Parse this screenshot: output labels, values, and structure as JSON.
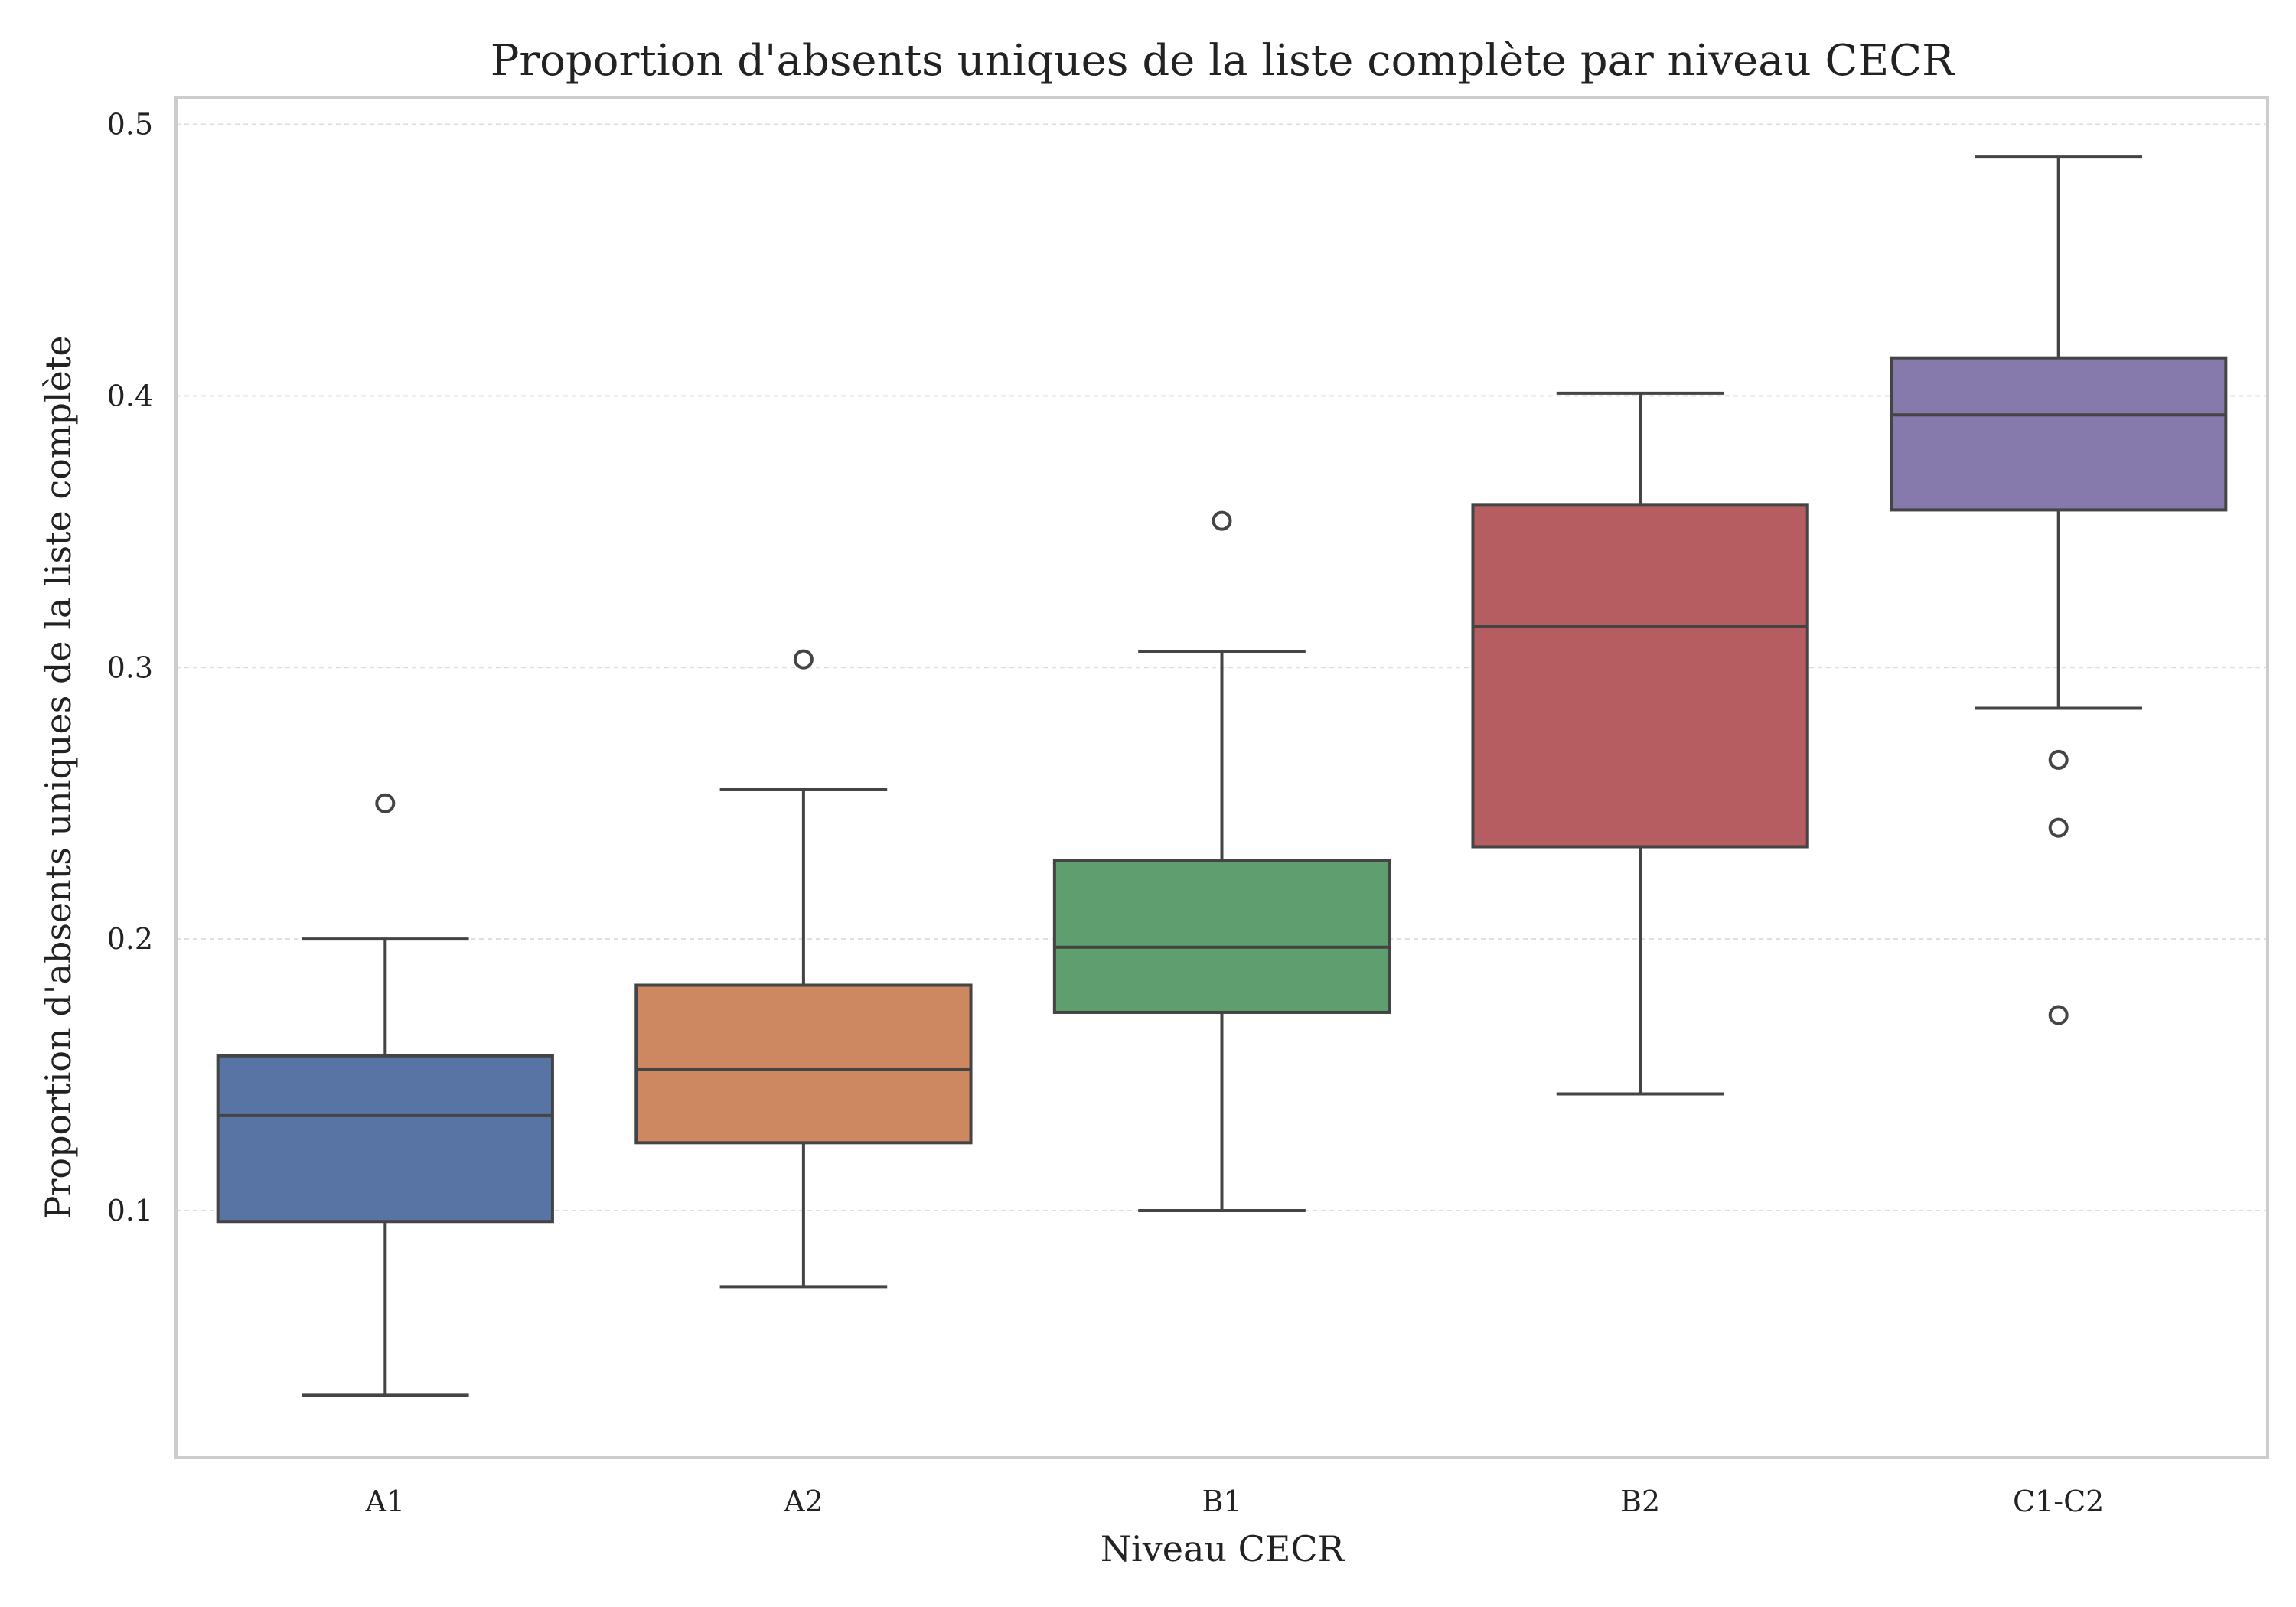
{
  "chart_data": {
    "type": "box",
    "title": "Proportion d'absents uniques de la liste complète par niveau CECR",
    "xlabel": "Niveau CECR",
    "ylabel": "Proportion d'absents uniques de la liste complète",
    "ylim": [
      0.009,
      0.51
    ],
    "yticks": [
      0.1,
      0.2,
      0.3,
      0.4,
      0.5
    ],
    "ytick_labels": [
      "0.1",
      "0.2",
      "0.3",
      "0.4",
      "0.5"
    ],
    "grid": "horizontal-dashed",
    "categories": [
      "A1",
      "A2",
      "B1",
      "B2",
      "C1-C2"
    ],
    "colors": [
      "#5874a5",
      "#cd8862",
      "#5f9e6e",
      "#b55d60",
      "#8679ab"
    ],
    "boxes": [
      {
        "category": "A1",
        "whisker_low": 0.032,
        "q1": 0.096,
        "median": 0.135,
        "q3": 0.157,
        "whisker_high": 0.2,
        "outliers": [
          0.25
        ]
      },
      {
        "category": "A2",
        "whisker_low": 0.072,
        "q1": 0.125,
        "median": 0.152,
        "q3": 0.183,
        "whisker_high": 0.255,
        "outliers": [
          0.303
        ]
      },
      {
        "category": "B1",
        "whisker_low": 0.1,
        "q1": 0.173,
        "median": 0.197,
        "q3": 0.229,
        "whisker_high": 0.306,
        "outliers": [
          0.354
        ]
      },
      {
        "category": "B2",
        "whisker_low": 0.143,
        "q1": 0.234,
        "median": 0.315,
        "q3": 0.36,
        "whisker_high": 0.401,
        "outliers": []
      },
      {
        "category": "C1-C2",
        "whisker_low": 0.285,
        "q1": 0.358,
        "median": 0.393,
        "q3": 0.414,
        "whisker_high": 0.488,
        "outliers": [
          0.266,
          0.241,
          0.172
        ]
      }
    ]
  }
}
